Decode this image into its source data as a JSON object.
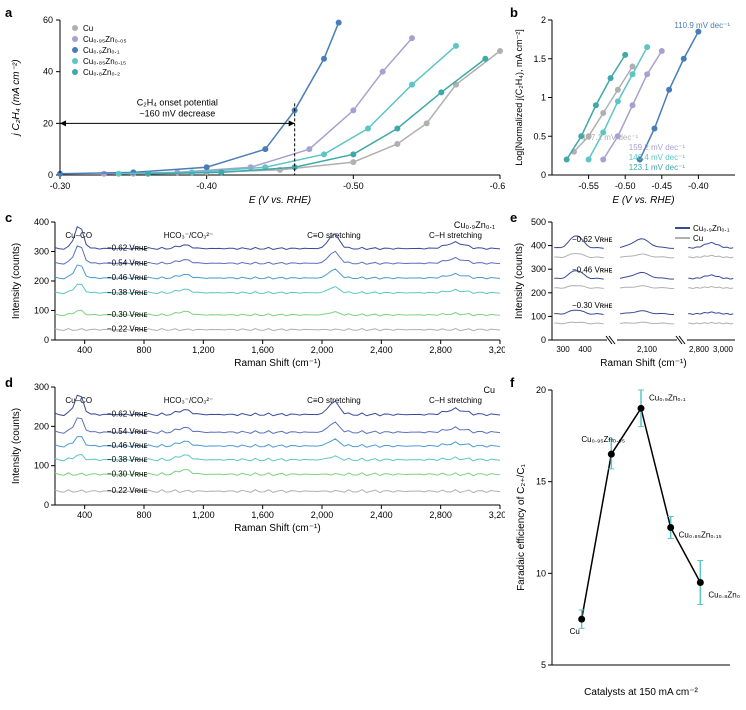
{
  "panel_a": {
    "label": "a",
    "type": "line-scatter",
    "xlabel": "E (V vs. RHE)",
    "ylabel": "j C₂H₄ (mA cm⁻²)",
    "xlim": [
      -0.3,
      -0.6
    ],
    "ylim": [
      0,
      60
    ],
    "xticks": [
      -0.3,
      -0.4,
      -0.5,
      -0.6
    ],
    "yticks": [
      0,
      20,
      40,
      60
    ],
    "annotation": "C₂H₄ onset potential\n~160 mV decrease",
    "legend": [
      {
        "label": "Cu",
        "color": "#b0b0b0"
      },
      {
        "label": "Cu₀.₉₅Zn₀.₀₅",
        "color": "#a8a0d0"
      },
      {
        "label": "Cu₀.₉Zn₀.₁",
        "color": "#4a7db8"
      },
      {
        "label": "Cu₀.₈₅Zn₀.₁₅",
        "color": "#5ec5c5"
      },
      {
        "label": "Cu₀.₈Zn₀.₂",
        "color": "#3fa8a8"
      }
    ],
    "series": [
      {
        "color": "#b0b0b0",
        "points": [
          [
            -0.35,
            0.5
          ],
          [
            -0.4,
            1
          ],
          [
            -0.45,
            2
          ],
          [
            -0.5,
            5
          ],
          [
            -0.53,
            12
          ],
          [
            -0.55,
            20
          ],
          [
            -0.57,
            35
          ],
          [
            -0.6,
            48
          ]
        ]
      },
      {
        "color": "#a8a0d0",
        "points": [
          [
            -0.33,
            0.5
          ],
          [
            -0.38,
            1
          ],
          [
            -0.43,
            3
          ],
          [
            -0.47,
            10
          ],
          [
            -0.5,
            25
          ],
          [
            -0.52,
            40
          ],
          [
            -0.54,
            53
          ]
        ]
      },
      {
        "color": "#4a7db8",
        "points": [
          [
            -0.3,
            0.5
          ],
          [
            -0.35,
            1
          ],
          [
            -0.4,
            3
          ],
          [
            -0.44,
            10
          ],
          [
            -0.46,
            25
          ],
          [
            -0.48,
            45
          ],
          [
            -0.49,
            59
          ]
        ]
      },
      {
        "color": "#5ec5c5",
        "points": [
          [
            -0.34,
            0.5
          ],
          [
            -0.39,
            1
          ],
          [
            -0.44,
            3
          ],
          [
            -0.48,
            8
          ],
          [
            -0.51,
            18
          ],
          [
            -0.54,
            35
          ],
          [
            -0.57,
            50
          ]
        ]
      },
      {
        "color": "#3fa8a8",
        "points": [
          [
            -0.36,
            0.5
          ],
          [
            -0.41,
            1
          ],
          [
            -0.46,
            3
          ],
          [
            -0.5,
            8
          ],
          [
            -0.53,
            18
          ],
          [
            -0.56,
            32
          ],
          [
            -0.59,
            45
          ]
        ]
      }
    ],
    "label_fontsize": 10,
    "tick_fontsize": 9
  },
  "panel_b": {
    "label": "b",
    "type": "line-scatter",
    "xlabel": "E (V vs. RHE)",
    "ylabel": "Log[Normalized j(C₂H₄), mA cm⁻²]",
    "xlim": [
      -0.6,
      -0.35
    ],
    "ylim": [
      0,
      2.0
    ],
    "xticks": [
      -0.55,
      -0.5,
      -0.45,
      -0.4
    ],
    "yticks": [
      0,
      0.5,
      1.0,
      1.5,
      2.0
    ],
    "tafel_labels": [
      {
        "text": "110.9 mV dec⁻¹",
        "color": "#4a7db8"
      },
      {
        "text": "167.1 mV dec⁻¹",
        "color": "#b0b0b0"
      },
      {
        "text": "159.2 mV dec⁻¹",
        "color": "#a8a0d0"
      },
      {
        "text": "146.4 mV dec⁻¹",
        "color": "#5ec5c5"
      },
      {
        "text": "123.1 mV dec⁻¹",
        "color": "#3fa8a8"
      }
    ],
    "series": [
      {
        "color": "#b0b0b0",
        "points": [
          [
            -0.57,
            0.3
          ],
          [
            -0.55,
            0.5
          ],
          [
            -0.53,
            0.8
          ],
          [
            -0.51,
            1.1
          ],
          [
            -0.49,
            1.4
          ]
        ]
      },
      {
        "color": "#a8a0d0",
        "points": [
          [
            -0.53,
            0.2
          ],
          [
            -0.51,
            0.5
          ],
          [
            -0.49,
            0.9
          ],
          [
            -0.47,
            1.3
          ],
          [
            -0.45,
            1.6
          ]
        ]
      },
      {
        "color": "#4a7db8",
        "points": [
          [
            -0.48,
            0.2
          ],
          [
            -0.46,
            0.6
          ],
          [
            -0.44,
            1.1
          ],
          [
            -0.42,
            1.5
          ],
          [
            -0.4,
            1.85
          ]
        ]
      },
      {
        "color": "#5ec5c5",
        "points": [
          [
            -0.55,
            0.2
          ],
          [
            -0.53,
            0.55
          ],
          [
            -0.51,
            0.95
          ],
          [
            -0.49,
            1.3
          ],
          [
            -0.47,
            1.65
          ]
        ]
      },
      {
        "color": "#3fa8a8",
        "points": [
          [
            -0.58,
            0.2
          ],
          [
            -0.56,
            0.5
          ],
          [
            -0.54,
            0.9
          ],
          [
            -0.52,
            1.25
          ],
          [
            -0.5,
            1.55
          ]
        ]
      }
    ]
  },
  "panel_c": {
    "label": "c",
    "type": "spectra",
    "xlabel": "Raman Shift (cm⁻¹)",
    "ylabel": "Intensity (counts)",
    "xlim": [
      200,
      3200
    ],
    "ylim": [
      0,
      400
    ],
    "xticks": [
      400,
      800,
      1200,
      1600,
      2000,
      2400,
      2800,
      3200
    ],
    "yticks": [
      0,
      100,
      200,
      300,
      400
    ],
    "title_right": "Cu₀.₉Zn₀.₁",
    "peak_labels": [
      "Cu–CO",
      "HCO₃⁻/CO₃²⁻",
      "C≡O stretching",
      "C–H stretching"
    ],
    "potentials": [
      "−0.62 Vʀʜᴇ",
      "−0.54 Vʀʜᴇ",
      "−0.46 Vʀʜᴇ",
      "−0.38 Vʀʜᴇ",
      "−0.30 Vʀʜᴇ",
      "−0.22 Vʀʜᴇ"
    ],
    "trace_colors": [
      "#3a4a9a",
      "#5a70c0",
      "#4a9dd0",
      "#5ec5c5",
      "#80d080",
      "#b0b0b0"
    ],
    "baselines": [
      310,
      260,
      210,
      160,
      85,
      35
    ]
  },
  "panel_d": {
    "label": "d",
    "type": "spectra",
    "xlabel": "Raman Shift (cm⁻¹)",
    "ylabel": "Intensity (counts)",
    "xlim": [
      200,
      3200
    ],
    "ylim": [
      0,
      300
    ],
    "xticks": [
      400,
      800,
      1200,
      1600,
      2000,
      2400,
      2800,
      3200
    ],
    "yticks": [
      0,
      100,
      200,
      300
    ],
    "title_right": "Cu",
    "peak_labels": [
      "Cu–CO",
      "HCO₃⁻/CO₃²⁻",
      "C≡O stretching",
      "C–H stretching"
    ],
    "potentials": [
      "−0.62 Vʀʜᴇ",
      "−0.54 Vʀʜᴇ",
      "−0.46 Vʀʜᴇ",
      "−0.38 Vʀʜᴇ",
      "−0.30 Vʀʜᴇ",
      "−0.22 Vʀʜᴇ"
    ],
    "trace_colors": [
      "#3a4a9a",
      "#5a70c0",
      "#4a9dd0",
      "#5ec5c5",
      "#80d080",
      "#b0b0b0"
    ],
    "baselines": [
      230,
      185,
      150,
      115,
      78,
      35
    ]
  },
  "panel_e": {
    "label": "e",
    "type": "spectra-broken",
    "xlabel": "Raman Shift (cm⁻¹)",
    "ylabel": "Intensity (counts)",
    "xticks_left": [
      300,
      400
    ],
    "xticks_mid": [
      2100
    ],
    "xticks_right": [
      2800,
      3000
    ],
    "ylim": [
      0,
      500
    ],
    "yticks": [
      0,
      100,
      200,
      300,
      400,
      500
    ],
    "legend": [
      {
        "label": "Cu₀.₉Zn₀.₁",
        "color": "#3a4a9a"
      },
      {
        "label": "Cu",
        "color": "#b0b0b0"
      }
    ],
    "potentials": [
      "−0.62 Vʀʜᴇ",
      "−0.46 Vʀʜᴇ",
      "−0.30 Vʀʜᴇ"
    ],
    "trace_colors": [
      "#3a4a9a",
      "#b0b0b0"
    ],
    "baselines": [
      [
        390,
        350
      ],
      [
        260,
        220
      ],
      [
        110,
        70
      ]
    ]
  },
  "panel_f": {
    "label": "f",
    "type": "line-scatter",
    "xlabel": "Catalysts at 150 mA cm⁻²",
    "ylabel": "Faradaic efficiency of C₂₊/C₁",
    "xlim": [
      0,
      6
    ],
    "ylim": [
      5,
      20
    ],
    "yticks": [
      5,
      10,
      15,
      20
    ],
    "point_labels": [
      "Cu",
      "Cu₀.₉₅Zn₀.₀₅",
      "Cu₀.₉Zn₀.₁",
      "Cu₀.₈₅Zn₀.₁₅",
      "Cu₀.₈Zn₀.₂"
    ],
    "points": [
      [
        1,
        7.5
      ],
      [
        2,
        16.5
      ],
      [
        3,
        19
      ],
      [
        4,
        12.5
      ],
      [
        5,
        9.5
      ]
    ],
    "error": [
      0.5,
      0.8,
      1.0,
      0.6,
      1.2
    ],
    "color": "#000",
    "error_color": "#5ec5c5"
  }
}
